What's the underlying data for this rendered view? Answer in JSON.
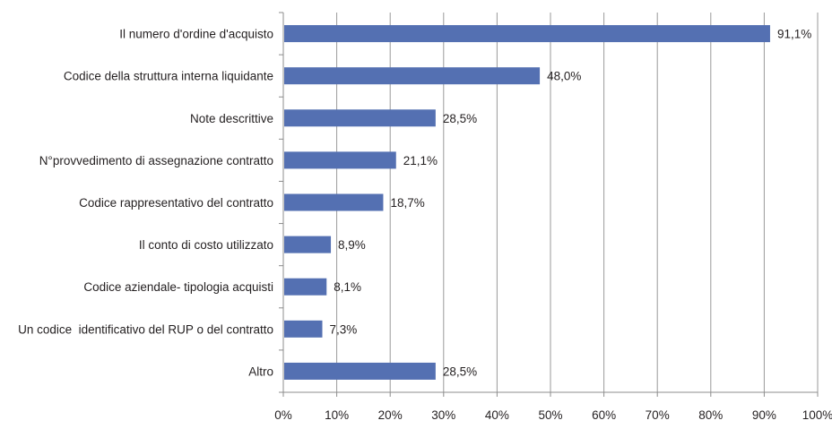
{
  "chart_data": {
    "type": "bar",
    "orientation": "horizontal",
    "categories": [
      "Il numero d'ordine d'acquisto",
      "Codice della struttura interna liquidante",
      "Note descrittive",
      "N°provvedimento di assegnazione contratto",
      "Codice rappresentativo del contratto",
      "Il conto di costo utilizzato",
      "Codice aziendale- tipologia acquisti",
      "Un codice  identificativo del RUP o del contratto",
      "Altro"
    ],
    "values": [
      91.1,
      48.0,
      28.5,
      21.1,
      18.7,
      8.9,
      8.1,
      7.3,
      28.5
    ],
    "value_labels": [
      "91,1%",
      "48,0%",
      "28,5%",
      "21,1%",
      "18,7%",
      "8,9%",
      "8,1%",
      "7,3%",
      "28,5%"
    ],
    "xlim": [
      0,
      100
    ],
    "x_ticks": [
      "0%",
      "10%",
      "20%",
      "30%",
      "40%",
      "50%",
      "60%",
      "70%",
      "80%",
      "90%",
      "100%"
    ],
    "grid": "vertical",
    "legend": "none",
    "title": "",
    "xlabel": "",
    "ylabel": "",
    "bar_color": "#5470b2"
  }
}
